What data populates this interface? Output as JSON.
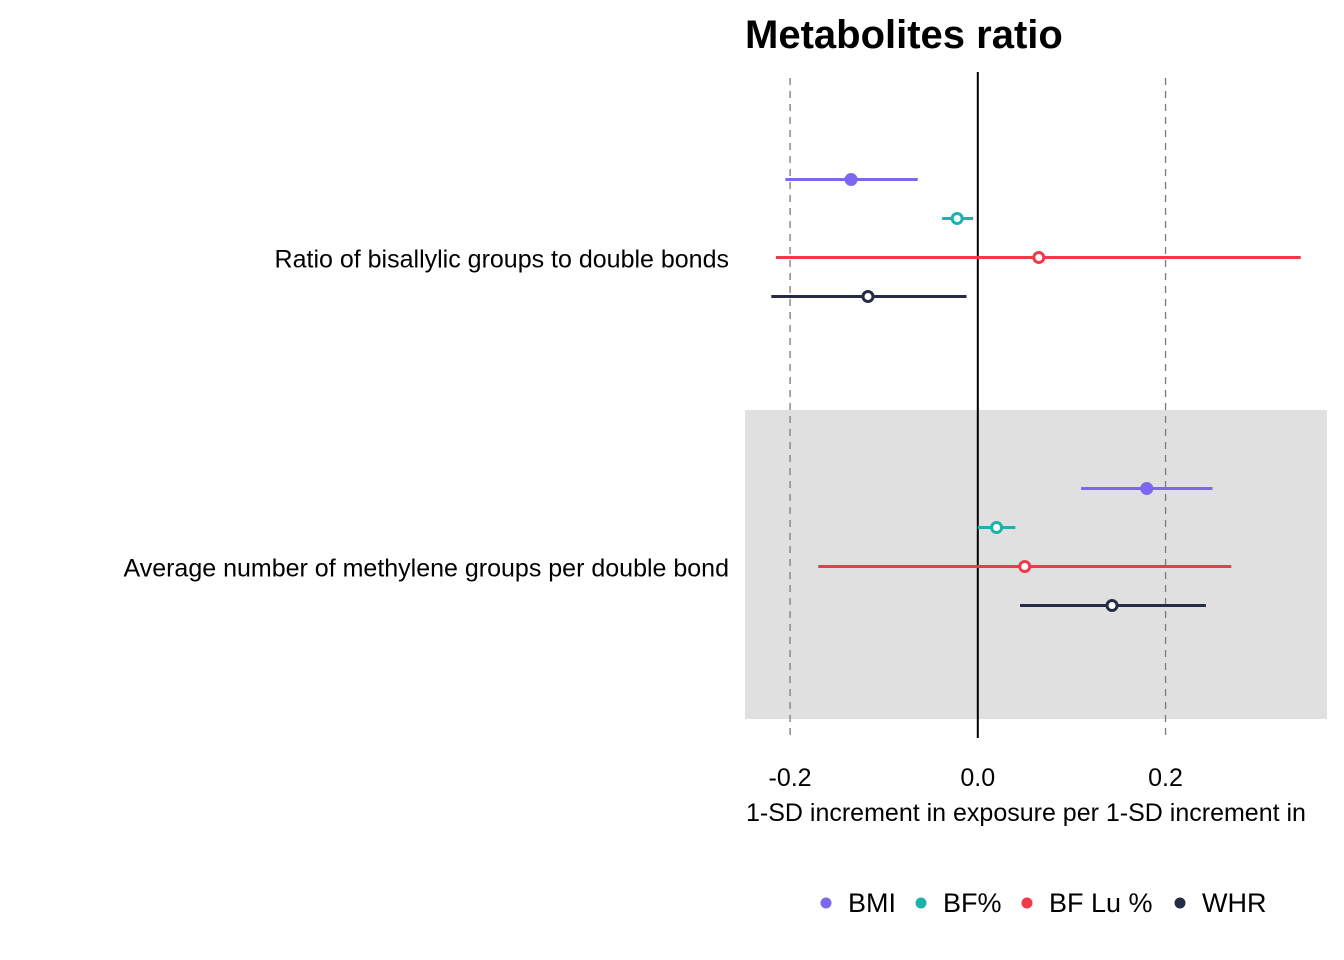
{
  "chart_data": {
    "type": "forest",
    "title": "Metabolites ratio",
    "xlabel": "1-SD increment in exposure per 1-SD increment in",
    "xlim": [
      -0.248,
      0.372
    ],
    "xticks": [
      {
        "value": -0.2,
        "label": "-0.2"
      },
      {
        "value": 0.0,
        "label": "0.0"
      },
      {
        "value": 0.2,
        "label": "0.2"
      }
    ],
    "reference_line": 0.0,
    "dashed_lines": [
      -0.2,
      0.2
    ],
    "categories": [
      "Ratio of bisallylic groups to double bonds",
      "Average number of methylene groups per double bond"
    ],
    "shaded_categories": [
      "Average number of methylene groups per double bond"
    ],
    "shade_color": "#e0e0e0",
    "series": [
      {
        "name": "BMI",
        "color": "#7b68ee",
        "points": [
          {
            "category": "Ratio of bisallylic groups to double bonds",
            "estimate": -0.135,
            "lower": -0.205,
            "upper": -0.064,
            "filled": true
          },
          {
            "category": "Average number of methylene groups per double bond",
            "estimate": 0.18,
            "lower": 0.11,
            "upper": 0.25,
            "filled": true
          }
        ]
      },
      {
        "name": "BF%",
        "color": "#1ab2ad",
        "points": [
          {
            "category": "Ratio of bisallylic groups to double bonds",
            "estimate": -0.022,
            "lower": -0.038,
            "upper": -0.005,
            "filled": false
          },
          {
            "category": "Average number of methylene groups per double bond",
            "estimate": 0.02,
            "lower": 0.0,
            "upper": 0.04,
            "filled": false
          }
        ]
      },
      {
        "name": "BF Lu %",
        "color": "#f2384a",
        "points": [
          {
            "category": "Ratio of bisallylic groups to double bonds",
            "estimate": 0.065,
            "lower": -0.215,
            "upper": 0.344,
            "filled": false
          },
          {
            "category": "Average number of methylene groups per double bond",
            "estimate": 0.05,
            "lower": -0.17,
            "upper": 0.27,
            "filled": false
          }
        ]
      },
      {
        "name": "WHR",
        "color": "#262c47",
        "points": [
          {
            "category": "Ratio of bisallylic groups to double bonds",
            "estimate": -0.117,
            "lower": -0.22,
            "upper": -0.012,
            "filled": false
          },
          {
            "category": "Average number of methylene groups per double bond",
            "estimate": 0.143,
            "lower": 0.045,
            "upper": 0.243,
            "filled": false
          }
        ]
      }
    ],
    "legend_position": "bottom",
    "grid": false
  }
}
